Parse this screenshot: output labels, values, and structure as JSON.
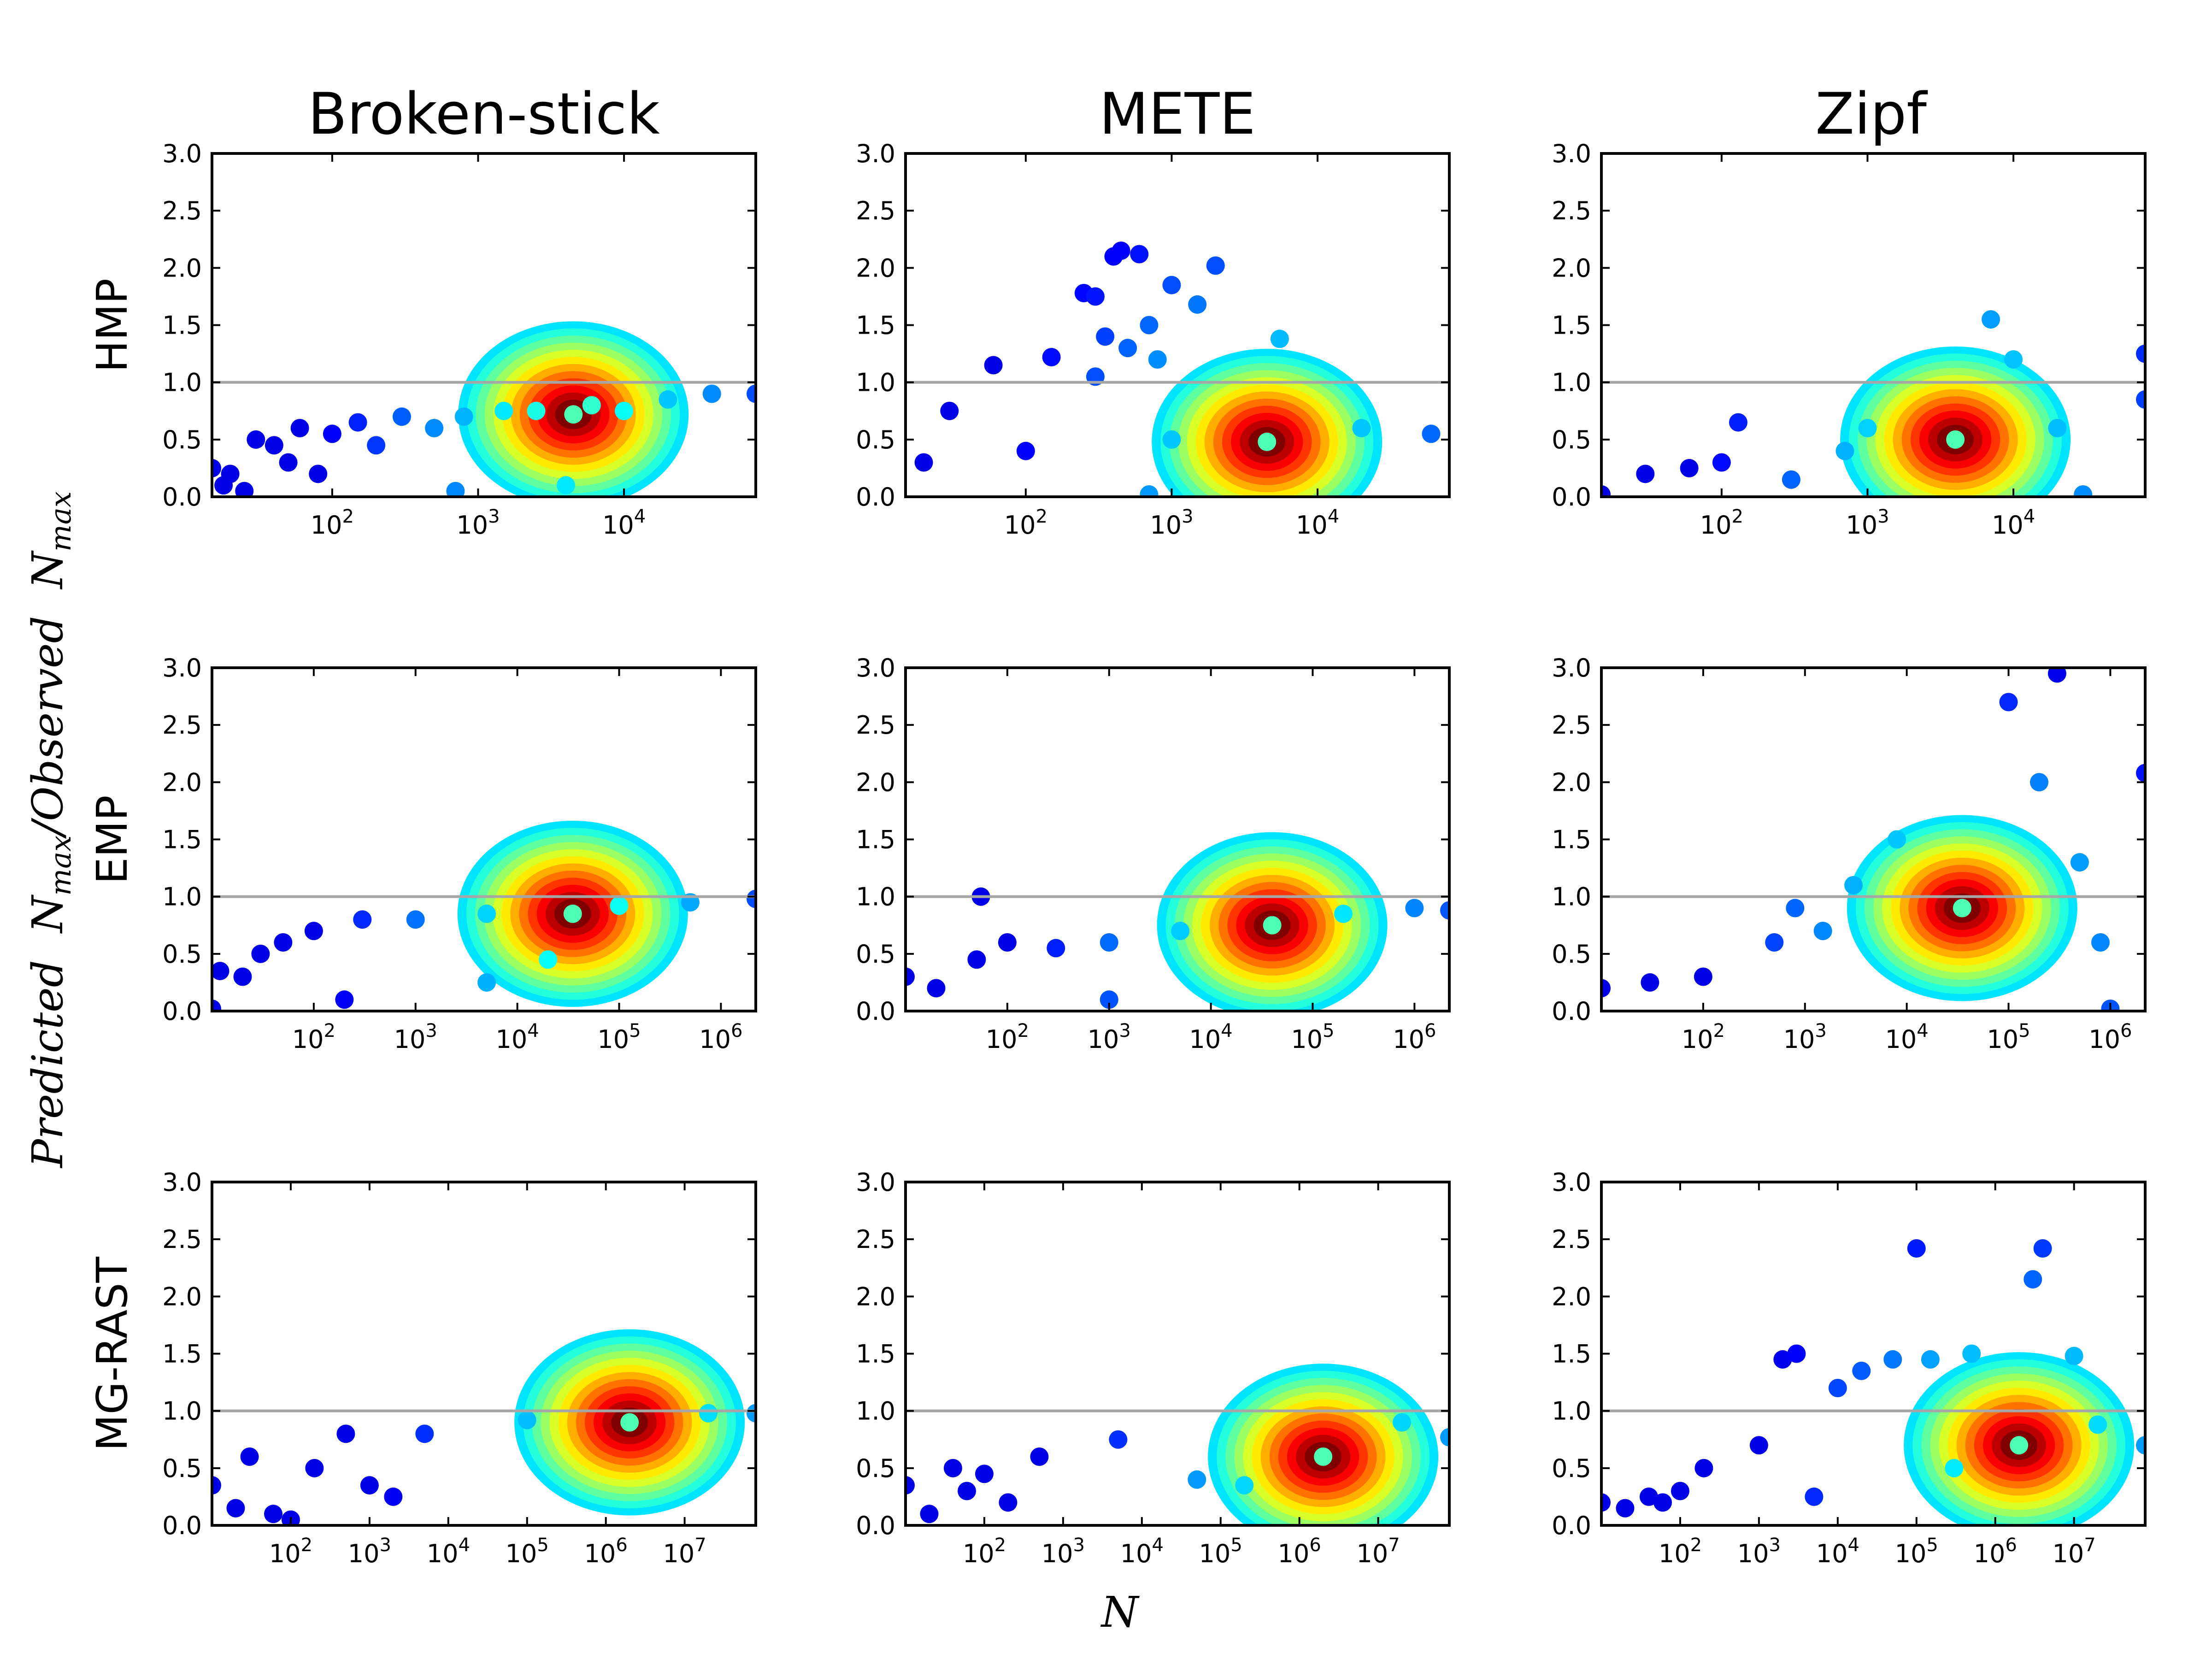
{
  "figure": {
    "column_titles": [
      "Broken-stick",
      "METE",
      "Zipf"
    ],
    "row_labels": [
      "HMP",
      "EMP",
      "MG-RAST"
    ],
    "ylabel": "Predicted  N_max/Observed  N_max",
    "ylabel_parts": [
      "Predicted",
      "N",
      "max",
      "/Observed",
      "N",
      "max"
    ],
    "xlabel": "N",
    "reference_line": {
      "y": 1.0,
      "color": "#a6a6a6"
    }
  },
  "chart_data": [
    {
      "type": "scatter",
      "title": "Broken-stick",
      "row": "HMP",
      "x_scale": "log",
      "xlim": [
        15,
        80000
      ],
      "ylim": [
        0,
        3
      ],
      "xticks": [
        100,
        1000,
        10000
      ],
      "xtick_labels": [
        "10^2",
        "10^3",
        "10^4"
      ],
      "yticks": [
        0,
        0.5,
        1,
        1.5,
        2,
        2.5,
        3
      ],
      "ytick_labels": [
        "0.0",
        "0.5",
        "1.0",
        "1.5",
        "2.0",
        "2.5",
        "3.0"
      ],
      "hline": 1.0,
      "density_center": {
        "x": 4500,
        "y": 0.72
      },
      "points": [
        [
          15,
          0.25
        ],
        [
          18,
          0.1
        ],
        [
          20,
          0.2
        ],
        [
          25,
          0.05
        ],
        [
          30,
          0.5
        ],
        [
          40,
          0.45
        ],
        [
          50,
          0.3
        ],
        [
          60,
          0.6
        ],
        [
          80,
          0.2
        ],
        [
          100,
          0.55
        ],
        [
          150,
          0.65
        ],
        [
          200,
          0.45
        ],
        [
          300,
          0.7
        ],
        [
          500,
          0.6
        ],
        [
          800,
          0.7
        ],
        [
          1500,
          0.75
        ],
        [
          2500,
          0.75
        ],
        [
          4500,
          0.72
        ],
        [
          6000,
          0.8
        ],
        [
          10000,
          0.75
        ],
        [
          20000,
          0.85
        ],
        [
          40000,
          0.9
        ],
        [
          80000,
          0.9
        ],
        [
          4000,
          0.1
        ],
        [
          700,
          0.05
        ]
      ]
    },
    {
      "type": "scatter",
      "title": "METE",
      "row": "HMP",
      "x_scale": "log",
      "xlim": [
        15,
        80000
      ],
      "ylim": [
        0,
        3
      ],
      "xticks": [
        100,
        1000,
        10000
      ],
      "xtick_labels": [
        "10^2",
        "10^3",
        "10^4"
      ],
      "yticks": [
        0,
        0.5,
        1,
        1.5,
        2,
        2.5,
        3
      ],
      "ytick_labels": [
        "0.0",
        "0.5",
        "1.0",
        "1.5",
        "2.0",
        "2.5",
        "3.0"
      ],
      "hline": 1.0,
      "density_center": {
        "x": 4500,
        "y": 0.48
      },
      "points": [
        [
          20,
          0.3
        ],
        [
          30,
          0.75
        ],
        [
          60,
          1.15
        ],
        [
          150,
          1.22
        ],
        [
          250,
          1.78
        ],
        [
          300,
          1.75
        ],
        [
          350,
          1.4
        ],
        [
          400,
          2.1
        ],
        [
          450,
          2.15
        ],
        [
          500,
          1.3
        ],
        [
          600,
          2.12
        ],
        [
          700,
          1.5
        ],
        [
          800,
          1.2
        ],
        [
          1000,
          1.85
        ],
        [
          1500,
          1.68
        ],
        [
          2000,
          2.02
        ],
        [
          300,
          1.05
        ],
        [
          5500,
          1.38
        ],
        [
          100,
          0.4
        ],
        [
          1000,
          0.5
        ],
        [
          4500,
          0.48
        ],
        [
          20000,
          0.6
        ],
        [
          60000,
          0.55
        ],
        [
          700,
          0.02
        ]
      ]
    },
    {
      "type": "scatter",
      "title": "Zipf",
      "row": "HMP",
      "x_scale": "log",
      "xlim": [
        15,
        80000
      ],
      "ylim": [
        0,
        3
      ],
      "xticks": [
        100,
        1000,
        10000
      ],
      "xtick_labels": [
        "10^2",
        "10^3",
        "10^4"
      ],
      "yticks": [
        0,
        0.5,
        1,
        1.5,
        2,
        2.5,
        3
      ],
      "ytick_labels": [
        "0.0",
        "0.5",
        "1.0",
        "1.5",
        "2.0",
        "2.5",
        "3.0"
      ],
      "hline": 1.0,
      "density_center": {
        "x": 4000,
        "y": 0.5
      },
      "points": [
        [
          15,
          0.02
        ],
        [
          30,
          0.2
        ],
        [
          60,
          0.25
        ],
        [
          100,
          0.3
        ],
        [
          130,
          0.65
        ],
        [
          300,
          0.15
        ],
        [
          700,
          0.4
        ],
        [
          1000,
          0.6
        ],
        [
          4000,
          0.5
        ],
        [
          7000,
          1.55
        ],
        [
          10000,
          1.2
        ],
        [
          20000,
          0.6
        ],
        [
          30000,
          0.02
        ],
        [
          80000,
          1.25
        ],
        [
          80000,
          0.85
        ]
      ]
    },
    {
      "type": "scatter",
      "title": "Broken-stick",
      "row": "EMP",
      "x_scale": "log",
      "xlim": [
        10,
        2200000
      ],
      "ylim": [
        0,
        3
      ],
      "xticks": [
        100,
        1000,
        10000,
        100000,
        1000000
      ],
      "xtick_labels": [
        "10^2",
        "10^3",
        "10^4",
        "10^5",
        "10^6"
      ],
      "yticks": [
        0,
        0.5,
        1,
        1.5,
        2,
        2.5,
        3
      ],
      "ytick_labels": [
        "0.0",
        "0.5",
        "1.0",
        "1.5",
        "2.0",
        "2.5",
        "3.0"
      ],
      "hline": 1.0,
      "density_center": {
        "x": 35000,
        "y": 0.85
      },
      "points": [
        [
          10,
          0.02
        ],
        [
          12,
          0.35
        ],
        [
          20,
          0.3
        ],
        [
          30,
          0.5
        ],
        [
          50,
          0.6
        ],
        [
          100,
          0.7
        ],
        [
          300,
          0.8
        ],
        [
          1000,
          0.8
        ],
        [
          5000,
          0.85
        ],
        [
          35000,
          0.85
        ],
        [
          100000,
          0.92
        ],
        [
          500000,
          0.95
        ],
        [
          2200000,
          0.98
        ],
        [
          20000,
          0.45
        ],
        [
          200,
          0.1
        ],
        [
          5000,
          0.25
        ]
      ]
    },
    {
      "type": "scatter",
      "title": "METE",
      "row": "EMP",
      "x_scale": "log",
      "xlim": [
        10,
        2200000
      ],
      "ylim": [
        0,
        3
      ],
      "xticks": [
        100,
        1000,
        10000,
        100000,
        1000000
      ],
      "xtick_labels": [
        "10^2",
        "10^3",
        "10^4",
        "10^5",
        "10^6"
      ],
      "yticks": [
        0,
        0.5,
        1,
        1.5,
        2,
        2.5,
        3
      ],
      "ytick_labels": [
        "0.0",
        "0.5",
        "1.0",
        "1.5",
        "2.0",
        "2.5",
        "3.0"
      ],
      "hline": 1.0,
      "density_center": {
        "x": 40000,
        "y": 0.75
      },
      "points": [
        [
          10,
          0.3
        ],
        [
          20,
          0.2
        ],
        [
          50,
          0.45
        ],
        [
          55,
          1.0
        ],
        [
          100,
          0.6
        ],
        [
          300,
          0.55
        ],
        [
          1000,
          0.6
        ],
        [
          5000,
          0.7
        ],
        [
          40000,
          0.75
        ],
        [
          200000,
          0.85
        ],
        [
          1000000,
          0.9
        ],
        [
          2200000,
          0.88
        ],
        [
          1000,
          0.1
        ]
      ]
    },
    {
      "type": "scatter",
      "title": "Zipf",
      "row": "EMP",
      "x_scale": "log",
      "xlim": [
        10,
        2200000
      ],
      "ylim": [
        0,
        3
      ],
      "xticks": [
        100,
        1000,
        10000,
        100000,
        1000000
      ],
      "xtick_labels": [
        "10^2",
        "10^3",
        "10^4",
        "10^5",
        "10^6"
      ],
      "yticks": [
        0,
        0.5,
        1,
        1.5,
        2,
        2.5,
        3
      ],
      "ytick_labels": [
        "0.0",
        "0.5",
        "1.0",
        "1.5",
        "2.0",
        "2.5",
        "3.0"
      ],
      "hline": 1.0,
      "density_center": {
        "x": 35000,
        "y": 0.9
      },
      "points": [
        [
          10,
          0.2
        ],
        [
          30,
          0.25
        ],
        [
          100,
          0.3
        ],
        [
          500,
          0.6
        ],
        [
          800,
          0.9
        ],
        [
          1500,
          0.7
        ],
        [
          3000,
          1.1
        ],
        [
          8000,
          1.5
        ],
        [
          35000,
          0.9
        ],
        [
          100000,
          2.7
        ],
        [
          200000,
          2.0
        ],
        [
          300000,
          2.95
        ],
        [
          500000,
          1.3
        ],
        [
          800000,
          0.6
        ],
        [
          2200000,
          2.08
        ],
        [
          1000000,
          0.02
        ]
      ]
    },
    {
      "type": "scatter",
      "title": "Broken-stick",
      "row": "MG-RAST",
      "x_scale": "log",
      "xlim": [
        10,
        80000000
      ],
      "ylim": [
        0,
        3
      ],
      "xticks": [
        100,
        1000,
        10000,
        100000,
        1000000,
        10000000
      ],
      "xtick_labels": [
        "10^2",
        "10^3",
        "10^4",
        "10^5",
        "10^6",
        "10^7"
      ],
      "yticks": [
        0,
        0.5,
        1,
        1.5,
        2,
        2.5,
        3
      ],
      "ytick_labels": [
        "0.0",
        "0.5",
        "1.0",
        "1.5",
        "2.0",
        "2.5",
        "3.0"
      ],
      "hline": 1.0,
      "density_center": {
        "x": 2000000,
        "y": 0.9
      },
      "points": [
        [
          10,
          0.35
        ],
        [
          20,
          0.15
        ],
        [
          30,
          0.6
        ],
        [
          60,
          0.1
        ],
        [
          100,
          0.05
        ],
        [
          200,
          0.5
        ],
        [
          500,
          0.8
        ],
        [
          1000,
          0.35
        ],
        [
          2000,
          0.25
        ],
        [
          5000,
          0.8
        ],
        [
          100000,
          0.92
        ],
        [
          2000000,
          0.9
        ],
        [
          20000000,
          0.98
        ],
        [
          80000000,
          0.98
        ]
      ]
    },
    {
      "type": "scatter",
      "title": "METE",
      "row": "MG-RAST",
      "x_scale": "log",
      "xlim": [
        10,
        80000000
      ],
      "ylim": [
        0,
        3
      ],
      "xticks": [
        100,
        1000,
        10000,
        100000,
        1000000,
        10000000
      ],
      "xtick_labels": [
        "10^2",
        "10^3",
        "10^4",
        "10^5",
        "10^6",
        "10^7"
      ],
      "yticks": [
        0,
        0.5,
        1,
        1.5,
        2,
        2.5,
        3
      ],
      "ytick_labels": [
        "0.0",
        "0.5",
        "1.0",
        "1.5",
        "2.0",
        "2.5",
        "3.0"
      ],
      "hline": 1.0,
      "density_center": {
        "x": 2000000,
        "y": 0.6
      },
      "points": [
        [
          10,
          0.35
        ],
        [
          20,
          0.1
        ],
        [
          40,
          0.5
        ],
        [
          60,
          0.3
        ],
        [
          100,
          0.45
        ],
        [
          200,
          0.2
        ],
        [
          500,
          0.6
        ],
        [
          5000,
          0.75
        ],
        [
          50000,
          0.4
        ],
        [
          200000,
          0.35
        ],
        [
          2000000,
          0.6
        ],
        [
          20000000,
          0.9
        ],
        [
          80000000,
          0.77
        ]
      ]
    },
    {
      "type": "scatter",
      "title": "Zipf",
      "row": "MG-RAST",
      "x_scale": "log",
      "xlim": [
        10,
        80000000
      ],
      "ylim": [
        0,
        3
      ],
      "xticks": [
        100,
        1000,
        10000,
        100000,
        1000000,
        10000000
      ],
      "xtick_labels": [
        "10^2",
        "10^3",
        "10^4",
        "10^5",
        "10^6",
        "10^7"
      ],
      "yticks": [
        0,
        0.5,
        1,
        1.5,
        2,
        2.5,
        3
      ],
      "ytick_labels": [
        "0.0",
        "0.5",
        "1.0",
        "1.5",
        "2.0",
        "2.5",
        "3.0"
      ],
      "hline": 1.0,
      "density_center": {
        "x": 2000000,
        "y": 0.7
      },
      "points": [
        [
          10,
          0.2
        ],
        [
          20,
          0.15
        ],
        [
          40,
          0.25
        ],
        [
          60,
          0.2
        ],
        [
          100,
          0.3
        ],
        [
          200,
          0.5
        ],
        [
          1000,
          0.7
        ],
        [
          2000,
          1.45
        ],
        [
          3000,
          1.5
        ],
        [
          5000,
          0.25
        ],
        [
          10000,
          1.2
        ],
        [
          20000,
          1.35
        ],
        [
          50000,
          1.45
        ],
        [
          100000,
          2.42
        ],
        [
          150000,
          1.45
        ],
        [
          300000,
          0.5
        ],
        [
          500000,
          1.5
        ],
        [
          2000000,
          0.7
        ],
        [
          3000000,
          2.15
        ],
        [
          4000000,
          2.42
        ],
        [
          10000000,
          1.48
        ],
        [
          20000000,
          0.88
        ],
        [
          80000000,
          0.7
        ]
      ]
    }
  ]
}
